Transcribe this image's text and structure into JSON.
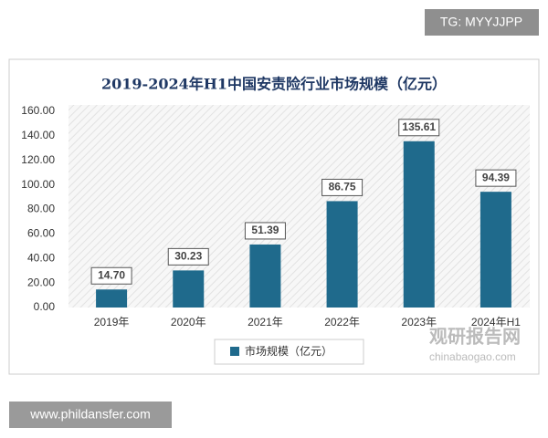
{
  "chart_data": {
    "type": "bar",
    "title": "2019-2024年H1中国安责险行业市场规模（亿元）",
    "categories": [
      "2019年",
      "2020年",
      "2021年",
      "2022年",
      "2023年",
      "2024年H1"
    ],
    "series": [
      {
        "name": "市场规模（亿元）",
        "color": "#1f6a8c",
        "values": [
          14.7,
          30.23,
          51.39,
          86.75,
          135.61,
          94.39
        ],
        "value_labels": [
          "14.70",
          "30.23",
          "51.39",
          "86.75",
          "135.61",
          "94.39"
        ]
      }
    ],
    "ylim": [
      0,
      160
    ],
    "yticks": [
      {
        "value": 0,
        "label": "0.00"
      },
      {
        "value": 20,
        "label": "20.00"
      },
      {
        "value": 40,
        "label": "40.00"
      },
      {
        "value": 60,
        "label": "60.00"
      },
      {
        "value": 80,
        "label": "80.00"
      },
      {
        "value": 100,
        "label": "100.00"
      },
      {
        "value": 120,
        "label": "120.00"
      },
      {
        "value": 140,
        "label": "140.00"
      },
      {
        "value": 160,
        "label": "160.00"
      }
    ],
    "legend": "bottom"
  },
  "overlays": {
    "top_tag": "TG: MYYJJPP",
    "bottom_url": "www.phildansfer.com",
    "logo_name": "观研报告网",
    "logo_url": "chinabaogao.com"
  }
}
